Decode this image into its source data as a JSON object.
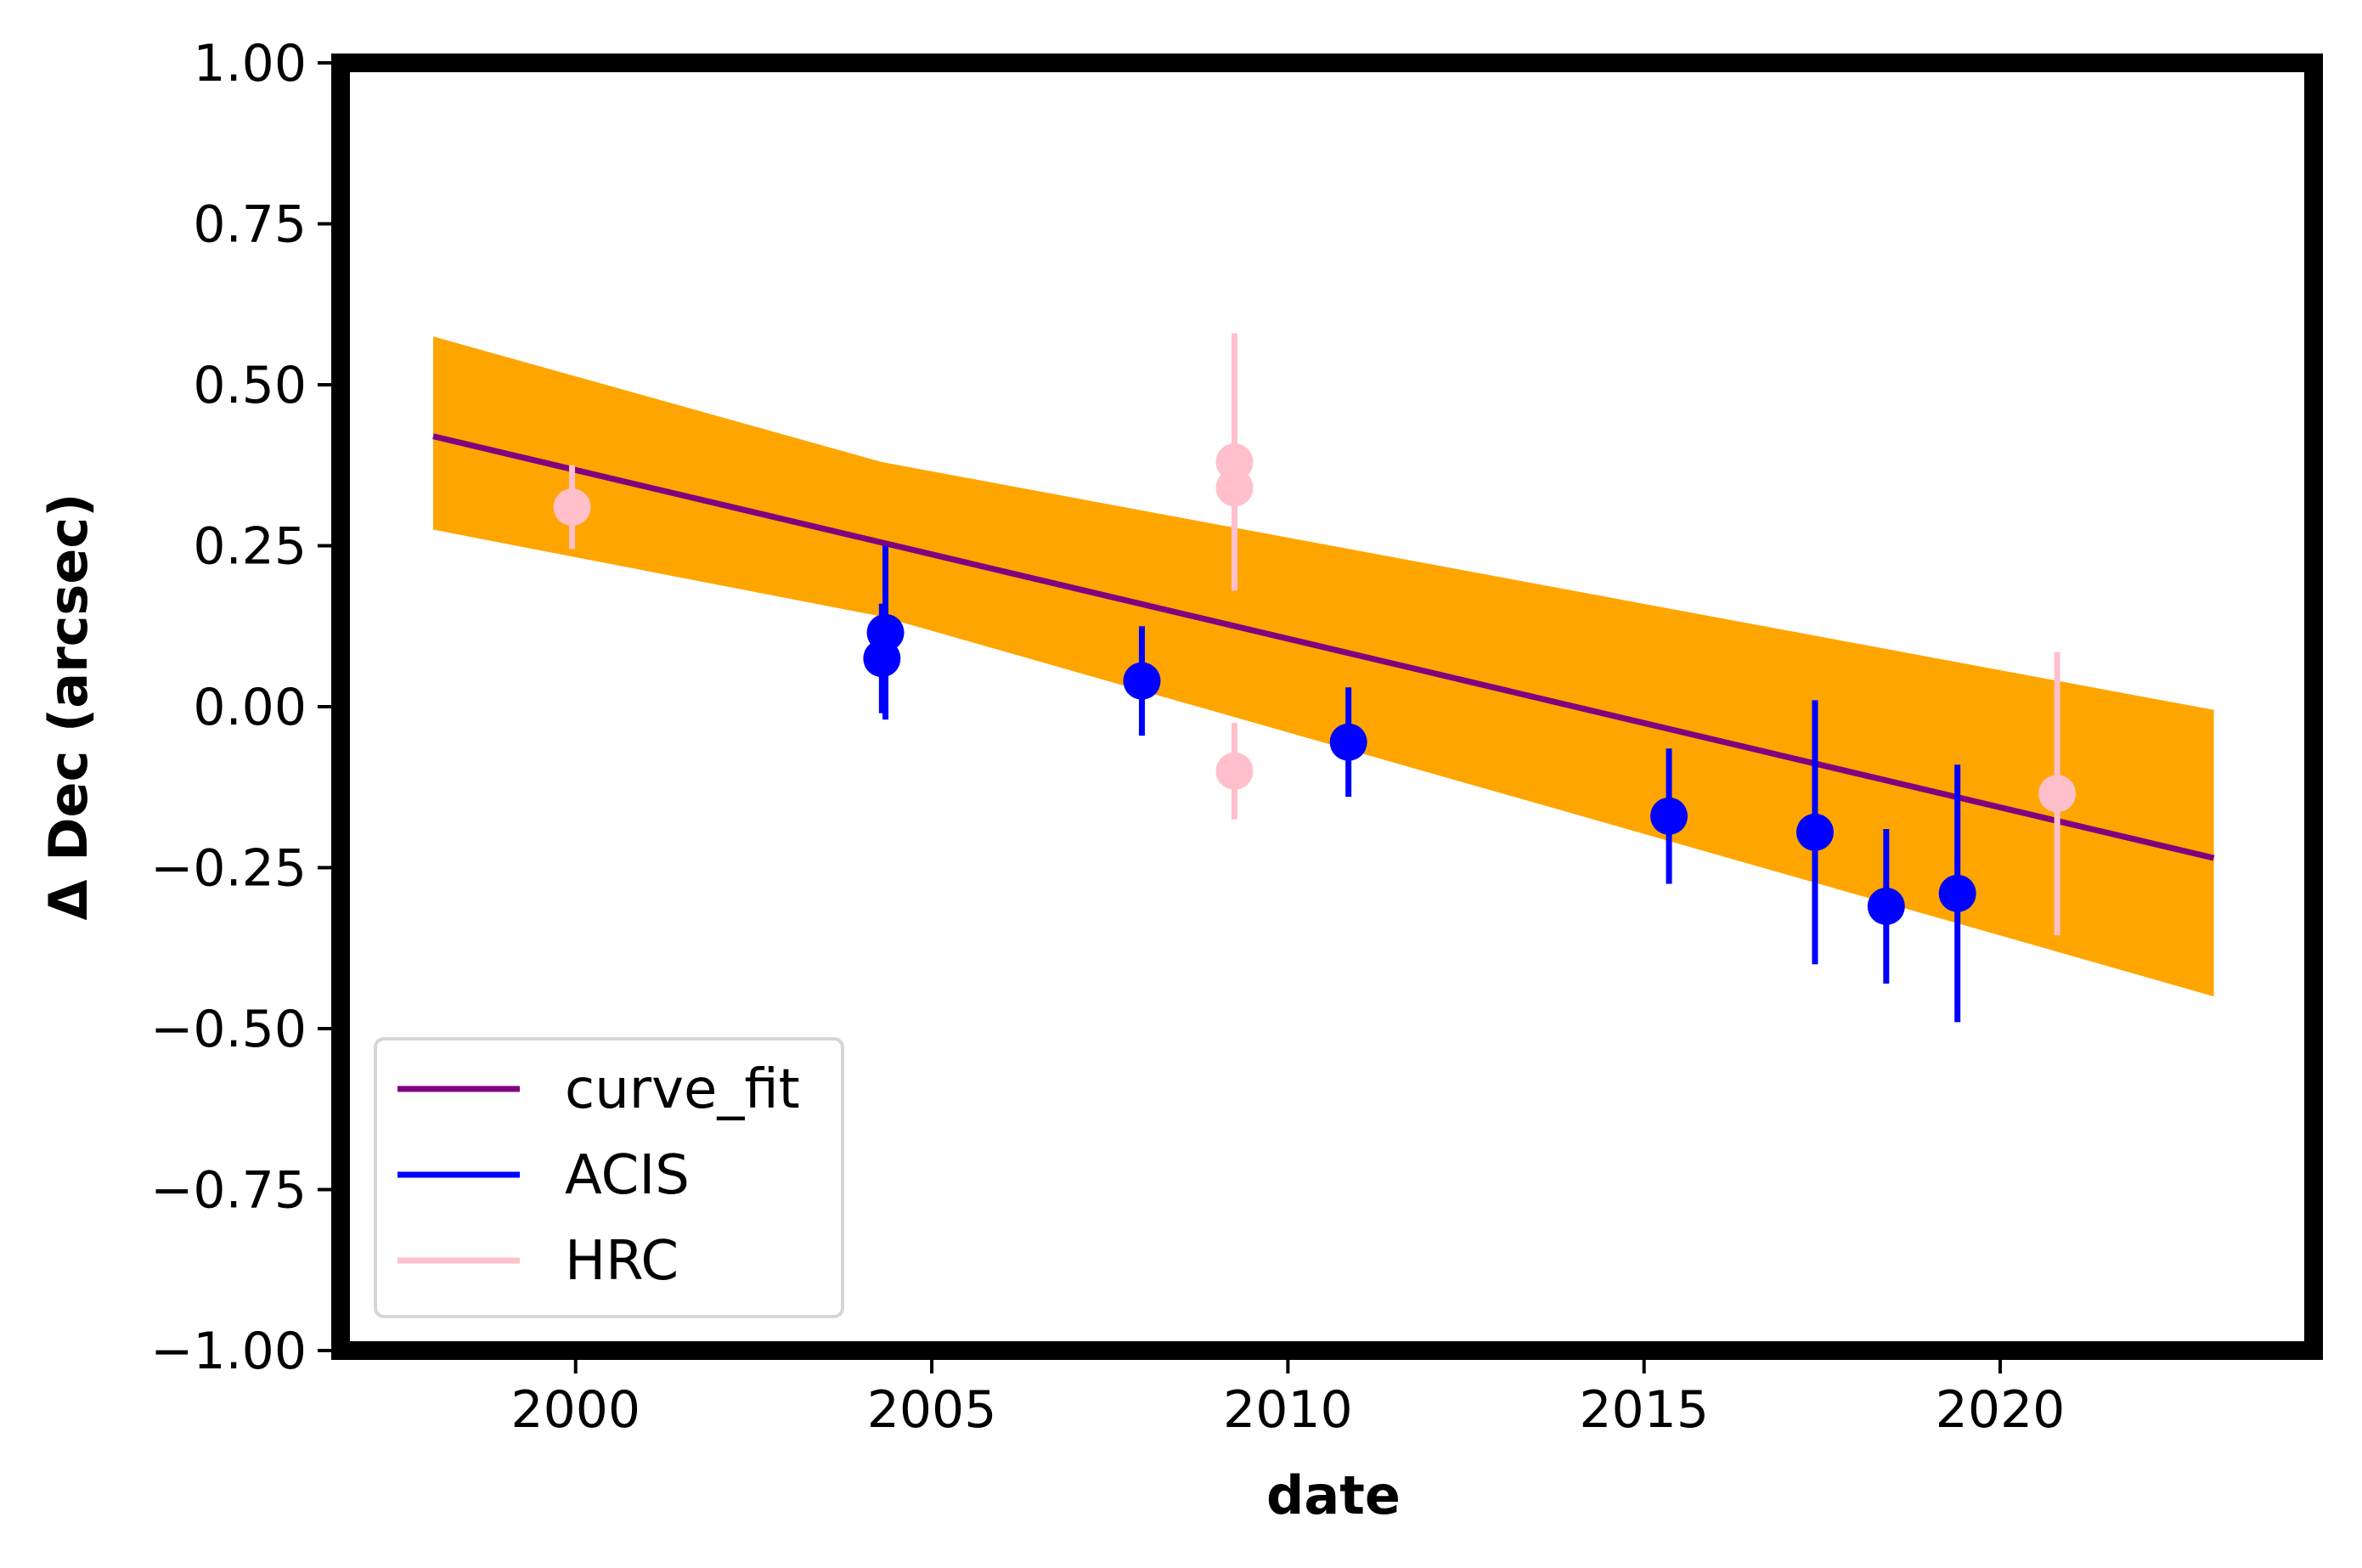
{
  "chart_data": {
    "type": "scatter",
    "title": "",
    "xlabel": "date",
    "ylabel": "Δ Dec (arcsec)",
    "xlim": [
      1996.7,
      2024.4
    ],
    "ylim": [
      -1.0,
      1.0
    ],
    "x_ticks": [
      2000,
      2005,
      2010,
      2015,
      2020
    ],
    "x_tick_labels": [
      "2000",
      "2005",
      "2010",
      "2015",
      "2020"
    ],
    "y_ticks": [
      1.0,
      0.75,
      0.5,
      0.25,
      0.0,
      -0.25,
      -0.5,
      -0.75,
      -1.0
    ],
    "y_tick_labels": [
      "1.00",
      "0.75",
      "0.50",
      "0.25",
      "0.00",
      "−0.25",
      "−0.50",
      "−0.75",
      "−1.00"
    ],
    "grid": false,
    "legend_position": "lower-left",
    "band": {
      "color": "#ffa500",
      "x": [
        1998.0,
        2004.3,
        2023.0
      ],
      "upper": [
        0.575,
        0.38,
        -0.005
      ],
      "lower": [
        0.275,
        0.14,
        -0.45
      ]
    },
    "series": [
      {
        "name": "curve_fit",
        "kind": "line",
        "color": "#800080",
        "x": [
          1998.0,
          2023.0
        ],
        "y": [
          0.42,
          -0.235
        ]
      },
      {
        "name": "ACIS",
        "kind": "errorbar",
        "color": "#0000ff",
        "points": [
          {
            "x": 2004.3,
            "y": 0.075,
            "err": 0.085
          },
          {
            "x": 2004.35,
            "y": 0.115,
            "err": 0.135
          },
          {
            "x": 2007.95,
            "y": 0.04,
            "err": 0.085
          },
          {
            "x": 2010.85,
            "y": -0.055,
            "err": 0.085
          },
          {
            "x": 2015.35,
            "y": -0.17,
            "err": 0.105
          },
          {
            "x": 2017.4,
            "y": -0.195,
            "err": 0.205
          },
          {
            "x": 2018.4,
            "y": -0.31,
            "err": 0.12
          },
          {
            "x": 2019.4,
            "y": -0.29,
            "err": 0.2
          }
        ]
      },
      {
        "name": "HRC",
        "kind": "errorbar",
        "color": "#ffc0cb",
        "points": [
          {
            "x": 1999.95,
            "y": 0.31,
            "err": 0.065
          },
          {
            "x": 2009.25,
            "y": 0.38,
            "err": 0.2
          },
          {
            "x": 2009.25,
            "y": 0.34,
            "err": 0.135
          },
          {
            "x": 2009.25,
            "y": -0.1,
            "err": 0.075
          },
          {
            "x": 2020.8,
            "y": -0.135,
            "err": 0.22
          }
        ]
      }
    ]
  }
}
